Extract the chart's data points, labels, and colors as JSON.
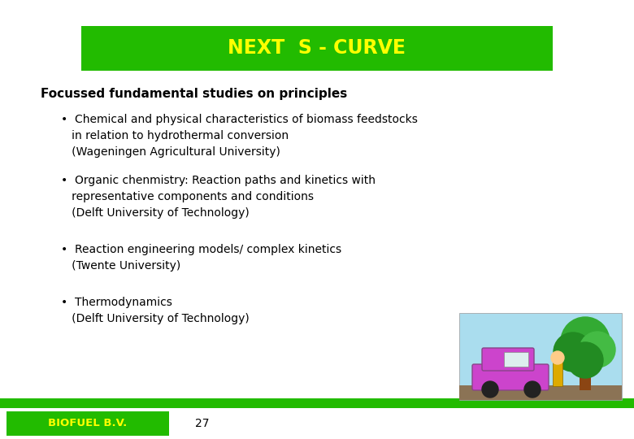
{
  "title": "NEXT  S - CURVE",
  "title_color": "#FFFF00",
  "title_bg_color": "#22BB00",
  "bg_color": "#FFFFFF",
  "heading": "Focussed fundamental studies on principles",
  "bullets": [
    "•  Chemical and physical characteristics of biomass feedstocks\n   in relation to hydrothermal conversion\n   (Wageningen Agricultural University)",
    "•  Organic chenmistry: Reaction paths and kinetics with\n   representative components and conditions\n   (Delft University of Technology)",
    "•  Reaction engineering models/ complex kinetics\n   (Twente University)",
    "•  Thermodynamics\n   (Delft University of Technology)"
  ],
  "footer_text": "BIOFUEL B.V.",
  "footer_number": "27",
  "footer_text_color": "#FFFF00",
  "footer_bar_color": "#22BB00",
  "green_bar_color": "#22BB00"
}
